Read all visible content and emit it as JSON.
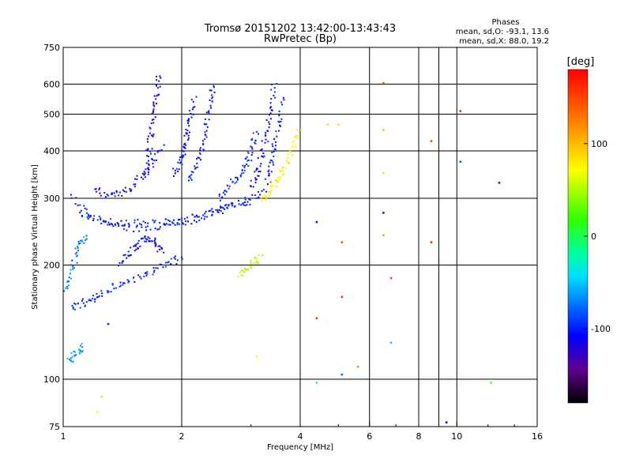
{
  "chart_data": {
    "type": "scatter",
    "title": "Tromsø 20151202 13:42:00-13:43:43",
    "subtitle": "RwPretec (Bp)",
    "xlabel": "Frequency [MHz]",
    "ylabel": "Stationary phase Virtual Height [km]",
    "x_scale": "log",
    "y_scale": "log",
    "xlim": [
      1,
      16
    ],
    "ylim": [
      75,
      750
    ],
    "x_ticks": [
      1,
      2,
      4,
      6,
      8,
      10,
      16
    ],
    "x_gridlines": [
      2,
      4,
      6,
      8,
      9,
      10
    ],
    "y_ticks": [
      75,
      100,
      200,
      300,
      400,
      500,
      600,
      750
    ],
    "grid": true,
    "stats": {
      "title": "Phases",
      "line1": "mean, sd,O: -93.1, 13.6",
      "line2": "mean, sd,X:  88.0, 19.2"
    },
    "colorbar": {
      "label": "[deg]",
      "range": [
        -180,
        180
      ],
      "ticks": [
        100,
        0,
        -100
      ],
      "tick_labels": [
        "100",
        "0",
        "-100"
      ]
    },
    "series": [
      {
        "traces": [
          {
            "x": [
              1.05,
              1.2,
              1.4,
              1.7,
              2.0,
              2.3,
              2.6,
              3.0
            ],
            "y": [
              300,
              265,
              258,
              258,
              262,
              272,
              285,
              295
            ],
            "phase": -100
          },
          {
            "x": [
              1.1,
              1.3,
              1.5,
              1.8,
              2.1,
              2.5,
              2.9,
              3.3
            ],
            "y": [
              275,
              255,
              250,
              254,
              262,
              278,
              296,
              318
            ],
            "phase": -110
          },
          {
            "x": [
              1.2,
              1.35,
              1.5,
              1.65,
              1.8
            ],
            "y": [
              315,
              305,
              320,
              360,
              410
            ],
            "phase": -115
          },
          {
            "x": [
              1.62,
              1.65,
              1.68,
              1.72,
              1.75
            ],
            "y": [
              340,
              400,
              470,
              550,
              640
            ],
            "phase": -120
          },
          {
            "x": [
              1.9,
              2.0,
              2.05,
              2.1,
              2.15
            ],
            "y": [
              350,
              380,
              420,
              480,
              550
            ],
            "phase": -110
          },
          {
            "x": [
              2.1,
              2.2,
              2.3,
              2.35,
              2.4
            ],
            "y": [
              330,
              380,
              440,
              520,
              600
            ],
            "phase": -105
          },
          {
            "x": [
              2.5,
              2.7,
              2.9,
              3.0,
              3.1
            ],
            "y": [
              300,
              330,
              360,
              400,
              450
            ],
            "phase": -100
          },
          {
            "x": [
              3.0,
              3.15,
              3.25,
              3.35,
              3.45
            ],
            "y": [
              320,
              360,
              420,
              500,
              620
            ],
            "phase": -110
          },
          {
            "x": [
              3.3,
              3.4,
              3.5,
              3.6
            ],
            "y": [
              330,
              380,
              450,
              560
            ],
            "phase": -105
          },
          {
            "x": [
              1.0,
              1.05,
              1.1,
              1.15
            ],
            "y": [
              170,
              195,
              225,
              240
            ],
            "phase": -70
          },
          {
            "x": [
              1.05,
              1.15,
              1.25,
              1.4,
              1.6,
              1.8,
              2.0
            ],
            "y": [
              155,
              160,
              168,
              178,
              188,
              200,
              210
            ],
            "phase": -100
          },
          {
            "x": [
              1.4,
              1.5,
              1.6,
              1.7,
              1.8
            ],
            "y": [
              200,
              220,
              235,
              230,
              215
            ],
            "phase": -115
          },
          {
            "x": [
              3.2,
              3.4,
              3.6,
              3.8,
              4.0
            ],
            "y": [
              300,
              320,
              350,
              400,
              460
            ],
            "phase": 100
          },
          {
            "x": [
              2.8,
              3.0,
              3.2
            ],
            "y": [
              190,
              200,
              210
            ],
            "phase": 40
          },
          {
            "x": [
              1.03,
              1.08,
              1.12
            ],
            "y": [
              110,
              118,
              122
            ],
            "phase": -60
          }
        ]
      }
    ],
    "sparse_points": [
      {
        "x": 6.5,
        "y": 605,
        "phase": 150
      },
      {
        "x": 6.5,
        "y": 455,
        "phase": 120
      },
      {
        "x": 6.5,
        "y": 350,
        "phase": 110
      },
      {
        "x": 6.5,
        "y": 275,
        "phase": -130
      },
      {
        "x": 6.5,
        "y": 240,
        "phase": 130
      },
      {
        "x": 6.8,
        "y": 185,
        "phase": 160
      },
      {
        "x": 6.8,
        "y": 125,
        "phase": -50
      },
      {
        "x": 8.6,
        "y": 425,
        "phase": 160
      },
      {
        "x": 8.6,
        "y": 230,
        "phase": 170
      },
      {
        "x": 10.2,
        "y": 510,
        "phase": 175
      },
      {
        "x": 10.2,
        "y": 375,
        "phase": -90
      },
      {
        "x": 12.8,
        "y": 330,
        "phase": -140
      },
      {
        "x": 12.2,
        "y": 98,
        "phase": 10
      },
      {
        "x": 9.4,
        "y": 77,
        "phase": -120
      },
      {
        "x": 5.6,
        "y": 108,
        "phase": 140
      },
      {
        "x": 5.1,
        "y": 103,
        "phase": -80
      },
      {
        "x": 4.4,
        "y": 98,
        "phase": -30
      },
      {
        "x": 4.4,
        "y": 145,
        "phase": 170
      },
      {
        "x": 5.1,
        "y": 165,
        "phase": 170
      },
      {
        "x": 5.1,
        "y": 230,
        "phase": 160
      },
      {
        "x": 4.4,
        "y": 260,
        "phase": -120
      },
      {
        "x": 4.7,
        "y": 470,
        "phase": 110
      },
      {
        "x": 5.0,
        "y": 470,
        "phase": 110
      },
      {
        "x": 3.1,
        "y": 115,
        "phase": 100
      },
      {
        "x": 1.25,
        "y": 90,
        "phase": 110
      },
      {
        "x": 1.22,
        "y": 82,
        "phase": 100
      },
      {
        "x": 1.3,
        "y": 140,
        "phase": -100
      }
    ]
  }
}
